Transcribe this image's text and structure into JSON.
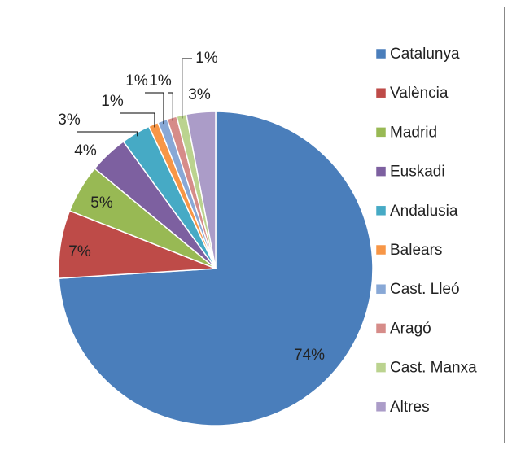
{
  "chart_data": {
    "type": "pie",
    "categories": [
      "Catalunya",
      "València",
      "Madrid",
      "Euskadi",
      "Andalusia",
      "Balears",
      "Cast. Lleó",
      "Aragó",
      "Cast. Manxa",
      "Altres"
    ],
    "values": [
      74,
      7,
      5,
      4,
      3,
      1,
      1,
      1,
      1,
      3
    ],
    "value_labels": [
      "74%",
      "7%",
      "5%",
      "4%",
      "3%",
      "1%",
      "1%",
      "1%",
      "1%",
      "3%"
    ],
    "colors": [
      "#4a7ebb",
      "#be4b48",
      "#98b954",
      "#7d60a0",
      "#46aac5",
      "#f79646",
      "#88a8d6",
      "#d68c89",
      "#bbd38f",
      "#ab9cc8"
    ],
    "legend": "right"
  }
}
